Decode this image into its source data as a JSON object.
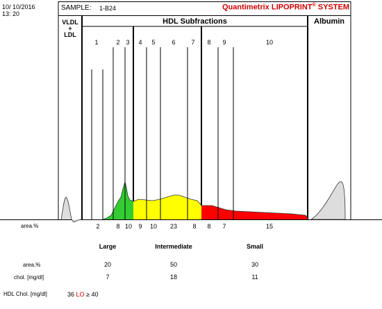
{
  "header": {
    "date": "10/ 10/2016",
    "time": "13: 20",
    "sample_label": "SAMPLE:",
    "sample_id": "1-B24",
    "brand": "Quantimetrix LIPOPRINT",
    "brand_mark": "®",
    "brand_suffix": " SYSTEM"
  },
  "sections": {
    "vldl_top": "VLDL",
    "vldl_plus": "+",
    "vldl_bottom": "LDL",
    "hdl": "HDL Subfractions",
    "albumin": "Albumin"
  },
  "chart_data": {
    "type": "area",
    "subfraction_numbers": [
      "1",
      "2",
      "3",
      "4",
      "5",
      "6",
      "7",
      "8",
      "9",
      "10"
    ],
    "area_label": "area.%",
    "area_values": [
      "2",
      "8",
      "10",
      "9",
      "10",
      "23",
      "8",
      "8",
      "7",
      "15"
    ],
    "groups": [
      {
        "name": "Large",
        "color": "#33cc33",
        "area": "20",
        "chol": "7"
      },
      {
        "name": "Intermediate",
        "color": "#ffff00",
        "area": "50",
        "chol": "18"
      },
      {
        "name": "Small",
        "color": "#ff0000",
        "area": "30",
        "chol": "11"
      }
    ]
  },
  "table": {
    "area_label": "area.%",
    "chol_label": "chol. [mg/dl]"
  },
  "footer": {
    "label": "HDL Chol. [mg/dl]",
    "value": "36",
    "flag": "LO",
    "ref": "≥ 40"
  }
}
